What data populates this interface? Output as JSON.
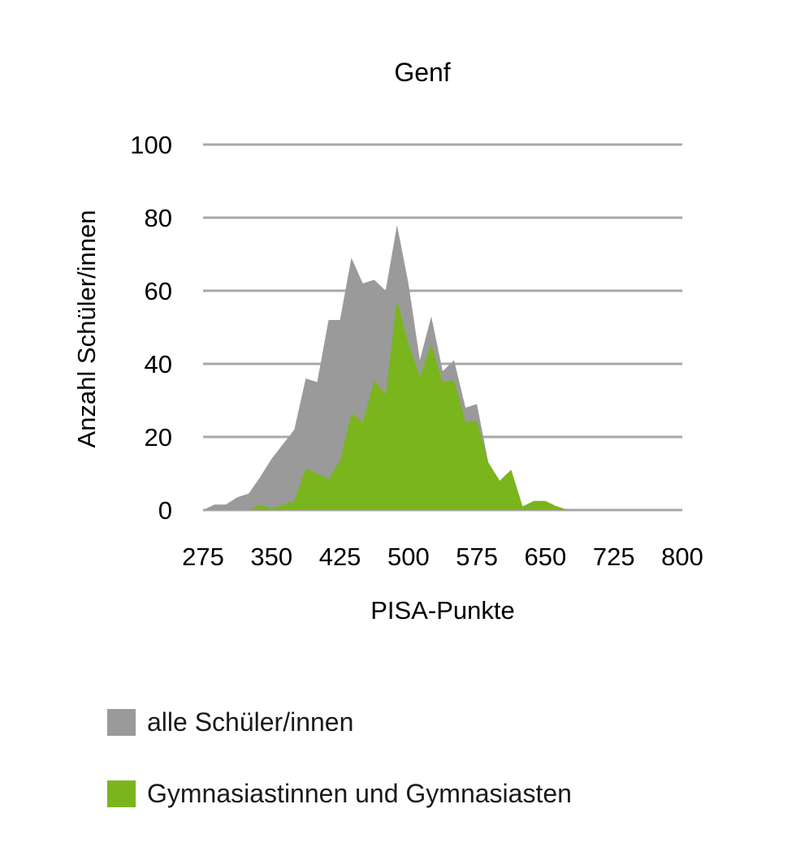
{
  "chart_data": {
    "type": "area",
    "title": "Genf",
    "xlabel": "PISA-Punkte",
    "ylabel": "Anzahl Schüler/innen",
    "xlim": [
      275,
      800
    ],
    "ylim": [
      0,
      100
    ],
    "x_ticks": [
      "275",
      "350",
      "425",
      "500",
      "575",
      "650",
      "725",
      "800"
    ],
    "y_ticks": [
      "0",
      "20",
      "40",
      "60",
      "80",
      "100"
    ],
    "grid": true,
    "legend_position": "bottom",
    "x": [
      275,
      287.5,
      300,
      312.5,
      325,
      337.5,
      350,
      362.5,
      375,
      387.5,
      400,
      412.5,
      425,
      437.5,
      450,
      462.5,
      475,
      487.5,
      500,
      512.5,
      525,
      537.5,
      550,
      562.5,
      575,
      587.5,
      600,
      612.5,
      625,
      637.5,
      650,
      662.5,
      675,
      687.5,
      700,
      712.5,
      725,
      737.5,
      750,
      762.5,
      775,
      787.5,
      800
    ],
    "series": [
      {
        "name": "alle Schüler/innen",
        "color": "#9a9a9a",
        "values": [
          0,
          1.5,
          1.5,
          3.5,
          4.5,
          9,
          14,
          18,
          22,
          36,
          35,
          52,
          52,
          69,
          62,
          63,
          60,
          78,
          62,
          41,
          53,
          38,
          41,
          28,
          29,
          13,
          8,
          11,
          1,
          2,
          2,
          1,
          0,
          0,
          0,
          0,
          0,
          0,
          0,
          0,
          0,
          0,
          0
        ]
      },
      {
        "name": "Gymnasiastinnen und Gymnasiasten",
        "color": "#7ab51d",
        "values": [
          0,
          0,
          0,
          0,
          0,
          1.5,
          0.5,
          1.5,
          2.5,
          11.5,
          10,
          8.5,
          13.5,
          26.5,
          24,
          35.5,
          31.5,
          57.5,
          45.5,
          36.5,
          45.5,
          35,
          35.5,
          24,
          24.5,
          13,
          8,
          11,
          1,
          2.5,
          2.5,
          1,
          0,
          0,
          0,
          0,
          0,
          0,
          0,
          0,
          0,
          0,
          0
        ]
      }
    ]
  }
}
